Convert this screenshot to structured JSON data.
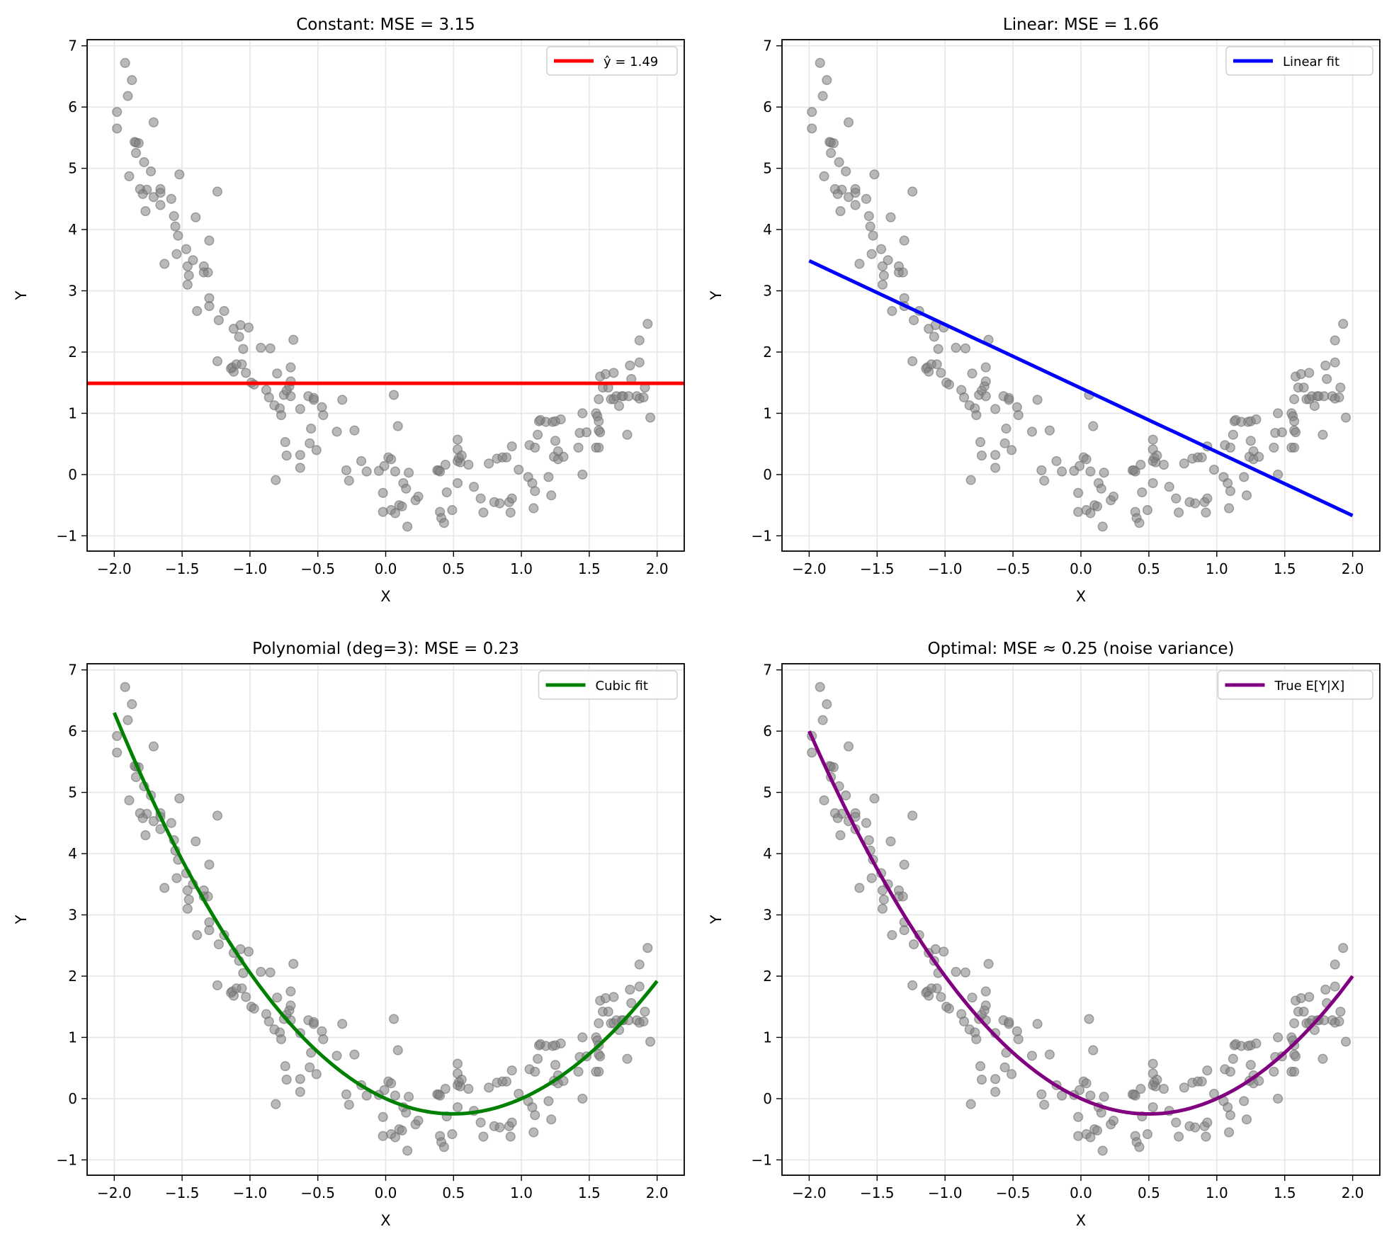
{
  "chart_data": {
    "type": "scatter",
    "shared": {
      "xlabel": "X",
      "ylabel": "Y",
      "xlim": [
        -2.2,
        2.2
      ],
      "ylim": [
        -1.25,
        7.1
      ],
      "xticks": [
        -2.0,
        -1.5,
        -1.0,
        -0.5,
        0.0,
        0.5,
        1.0,
        1.5,
        2.0
      ],
      "xtick_labels": [
        "−2.0",
        "−1.5",
        "−1.0",
        "−0.5",
        "0.0",
        "0.5",
        "1.0",
        "1.5",
        "2.0"
      ],
      "yticks": [
        -1,
        0,
        1,
        2,
        3,
        4,
        5,
        6,
        7
      ],
      "ytick_labels": [
        "−1",
        "0",
        "1",
        "2",
        "3",
        "4",
        "5",
        "6",
        "7"
      ],
      "grid": true,
      "legend_position": "top-right",
      "point_color": "#808080",
      "points": [
        [
          -1.98,
          5.92
        ],
        [
          -1.98,
          5.65
        ],
        [
          -1.92,
          6.72
        ],
        [
          -1.9,
          6.18
        ],
        [
          -1.87,
          6.44
        ],
        [
          -1.89,
          4.87
        ],
        [
          -1.85,
          5.43
        ],
        [
          -1.84,
          5.42
        ],
        [
          -1.82,
          5.41
        ],
        [
          -1.84,
          5.25
        ],
        [
          -1.78,
          5.1
        ],
        [
          -1.76,
          4.65
        ],
        [
          -1.81,
          4.66
        ],
        [
          -1.79,
          4.58
        ],
        [
          -1.77,
          4.3
        ],
        [
          -1.71,
          4.53
        ],
        [
          -1.73,
          4.95
        ],
        [
          -1.71,
          5.75
        ],
        [
          -1.66,
          4.66
        ],
        [
          -1.66,
          4.6
        ],
        [
          -1.66,
          4.4
        ],
        [
          -1.63,
          3.44
        ],
        [
          -1.58,
          4.5
        ],
        [
          -1.56,
          4.22
        ],
        [
          -1.55,
          4.05
        ],
        [
          -1.53,
          3.9
        ],
        [
          -1.54,
          3.6
        ],
        [
          -1.52,
          4.9
        ],
        [
          -1.47,
          3.68
        ],
        [
          -1.46,
          3.4
        ],
        [
          -1.46,
          3.1
        ],
        [
          -1.45,
          3.25
        ],
        [
          -1.42,
          3.5
        ],
        [
          -1.4,
          4.2
        ],
        [
          -1.39,
          2.67
        ],
        [
          -1.34,
          3.4
        ],
        [
          -1.34,
          3.3
        ],
        [
          -1.31,
          3.3
        ],
        [
          -1.3,
          3.82
        ],
        [
          -1.3,
          2.88
        ],
        [
          -1.3,
          2.75
        ],
        [
          -1.24,
          4.62
        ],
        [
          -1.23,
          2.52
        ],
        [
          -1.24,
          1.85
        ],
        [
          -1.19,
          2.67
        ],
        [
          -1.14,
          1.73
        ],
        [
          -1.13,
          1.75
        ],
        [
          -1.12,
          2.38
        ],
        [
          -1.12,
          1.68
        ],
        [
          -1.1,
          1.8
        ],
        [
          -1.08,
          2.25
        ],
        [
          -1.07,
          2.44
        ],
        [
          -1.05,
          2.05
        ],
        [
          -1.06,
          1.8
        ],
        [
          -1.03,
          1.66
        ],
        [
          -1.01,
          2.4
        ],
        [
          -0.99,
          1.5
        ],
        [
          -0.97,
          1.47
        ],
        [
          -0.92,
          2.07
        ],
        [
          -0.88,
          1.38
        ],
        [
          -0.86,
          1.26
        ],
        [
          -0.85,
          2.06
        ],
        [
          -0.82,
          1.13
        ],
        [
          -0.81,
          -0.09
        ],
        [
          -0.8,
          1.65
        ],
        [
          -0.78,
          1.08
        ],
        [
          -0.77,
          0.97
        ],
        [
          -0.75,
          1.3
        ],
        [
          -0.74,
          0.53
        ],
        [
          -0.73,
          0.31
        ],
        [
          -0.73,
          1.37
        ],
        [
          -0.71,
          1.44
        ],
        [
          -0.7,
          1.28
        ],
        [
          -0.7,
          1.75
        ],
        [
          -0.7,
          1.52
        ],
        [
          -0.68,
          2.2
        ],
        [
          -0.63,
          0.32
        ],
        [
          -0.63,
          1.07
        ],
        [
          -0.63,
          0.11
        ],
        [
          -0.57,
          1.28
        ],
        [
          -0.56,
          0.51
        ],
        [
          -0.55,
          0.75
        ],
        [
          -0.53,
          1.22
        ],
        [
          -0.53,
          1.25
        ],
        [
          -0.51,
          0.4
        ],
        [
          -0.47,
          1.1
        ],
        [
          -0.46,
          0.97
        ],
        [
          -0.36,
          0.7
        ],
        [
          -0.32,
          1.22
        ],
        [
          -0.29,
          0.07
        ],
        [
          -0.27,
          -0.1
        ],
        [
          -0.23,
          0.72
        ],
        [
          -0.18,
          0.22
        ],
        [
          -0.14,
          0.05
        ],
        [
          -0.05,
          0.06
        ],
        [
          -0.02,
          -0.3
        ],
        [
          -0.01,
          0.14
        ],
        [
          -0.02,
          -0.61
        ],
        [
          0.02,
          0.28
        ],
        [
          0.04,
          0.25
        ],
        [
          0.06,
          1.3
        ],
        [
          0.04,
          -0.58
        ],
        [
          0.07,
          -0.63
        ],
        [
          0.07,
          0.05
        ],
        [
          0.09,
          0.79
        ],
        [
          0.1,
          -0.5
        ],
        [
          0.12,
          -0.52
        ],
        [
          0.13,
          -0.14
        ],
        [
          0.15,
          -0.23
        ],
        [
          0.16,
          -0.85
        ],
        [
          0.17,
          0.03
        ],
        [
          0.22,
          -0.42
        ],
        [
          0.24,
          -0.36
        ],
        [
          0.38,
          0.07
        ],
        [
          0.39,
          0.07
        ],
        [
          0.4,
          0.05
        ],
        [
          0.4,
          -0.61
        ],
        [
          0.41,
          -0.71
        ],
        [
          0.43,
          -0.79
        ],
        [
          0.44,
          0.16
        ],
        [
          0.45,
          -0.29
        ],
        [
          0.49,
          -0.58
        ],
        [
          0.53,
          0.22
        ],
        [
          0.53,
          0.57
        ],
        [
          0.53,
          0.41
        ],
        [
          0.55,
          0.2
        ],
        [
          0.54,
          0.27
        ],
        [
          0.53,
          -0.14
        ],
        [
          0.56,
          0.31
        ],
        [
          0.61,
          0.16
        ],
        [
          0.65,
          -0.2
        ],
        [
          0.7,
          -0.39
        ],
        [
          0.72,
          -0.62
        ],
        [
          0.76,
          0.18
        ],
        [
          0.8,
          -0.45
        ],
        [
          0.82,
          0.26
        ],
        [
          0.84,
          -0.47
        ],
        [
          0.86,
          0.28
        ],
        [
          0.89,
          0.28
        ],
        [
          0.91,
          -0.45
        ],
        [
          0.92,
          -0.62
        ],
        [
          0.93,
          0.46
        ],
        [
          0.93,
          -0.39
        ],
        [
          0.98,
          0.08
        ],
        [
          1.05,
          -0.04
        ],
        [
          1.06,
          0.48
        ],
        [
          1.08,
          -0.14
        ],
        [
          1.09,
          -0.55
        ],
        [
          1.1,
          0.44
        ],
        [
          1.1,
          -0.27
        ],
        [
          1.12,
          0.65
        ],
        [
          1.13,
          0.87
        ],
        [
          1.14,
          0.89
        ],
        [
          1.18,
          0.86
        ],
        [
          1.2,
          -0.04
        ],
        [
          1.22,
          -0.34
        ],
        [
          1.24,
          0.29
        ],
        [
          1.23,
          0.86
        ],
        [
          1.25,
          0.87
        ],
        [
          1.25,
          0.55
        ],
        [
          1.27,
          0.38
        ],
        [
          1.27,
          0.25
        ],
        [
          1.29,
          0.9
        ],
        [
          1.31,
          0.29
        ],
        [
          1.42,
          0.44
        ],
        [
          1.43,
          0.68
        ],
        [
          1.45,
          0.0
        ],
        [
          1.45,
          1.0
        ],
        [
          1.48,
          0.69
        ],
        [
          1.55,
          0.44
        ],
        [
          1.55,
          1.0
        ],
        [
          1.57,
          0.44
        ],
        [
          1.56,
          0.95
        ],
        [
          1.57,
          0.87
        ],
        [
          1.57,
          0.72
        ],
        [
          1.58,
          0.69
        ],
        [
          1.57,
          1.23
        ],
        [
          1.6,
          1.42
        ],
        [
          1.58,
          1.6
        ],
        [
          1.62,
          1.64
        ],
        [
          1.64,
          1.42
        ],
        [
          1.66,
          1.23
        ],
        [
          1.68,
          1.23
        ],
        [
          1.68,
          1.66
        ],
        [
          1.7,
          1.28
        ],
        [
          1.72,
          1.12
        ],
        [
          1.74,
          1.28
        ],
        [
          1.75,
          1.28
        ],
        [
          1.78,
          0.65
        ],
        [
          1.79,
          1.28
        ],
        [
          1.8,
          1.78
        ],
        [
          1.81,
          1.56
        ],
        [
          1.85,
          1.28
        ],
        [
          1.87,
          1.83
        ],
        [
          1.87,
          1.24
        ],
        [
          1.87,
          2.19
        ],
        [
          1.9,
          1.26
        ],
        [
          1.91,
          1.42
        ],
        [
          1.93,
          2.46
        ],
        [
          1.95,
          0.93
        ]
      ]
    },
    "panels": [
      {
        "title": "Constant: MSE = 3.15",
        "fit": {
          "kind": "hline",
          "coeffs": [
            1.49
          ],
          "color": "#ff0000",
          "legend": "ŷ = 1.49"
        }
      },
      {
        "title": "Linear: MSE = 1.66",
        "fit": {
          "kind": "poly",
          "coeffs": [
            1.41,
            -1.04
          ],
          "range": [
            -2,
            2
          ],
          "color": "#0000ff",
          "legend": "Linear fit"
        }
      },
      {
        "title": "Polynomial (deg=3): MSE = 0.23",
        "fit": {
          "kind": "poly",
          "coeffs": [
            0.0,
            -1.005,
            1.0275,
            -0.0225
          ],
          "range": [
            -2,
            2
          ],
          "color": "#008000",
          "legend": "Cubic fit"
        }
      },
      {
        "title": "Optimal: MSE ≈ 0.25 (noise variance)",
        "fit": {
          "kind": "poly",
          "coeffs": [
            0,
            -1,
            1
          ],
          "range": [
            -2,
            2
          ],
          "color": "#800080",
          "legend": "True E[Y|X]"
        }
      }
    ]
  }
}
